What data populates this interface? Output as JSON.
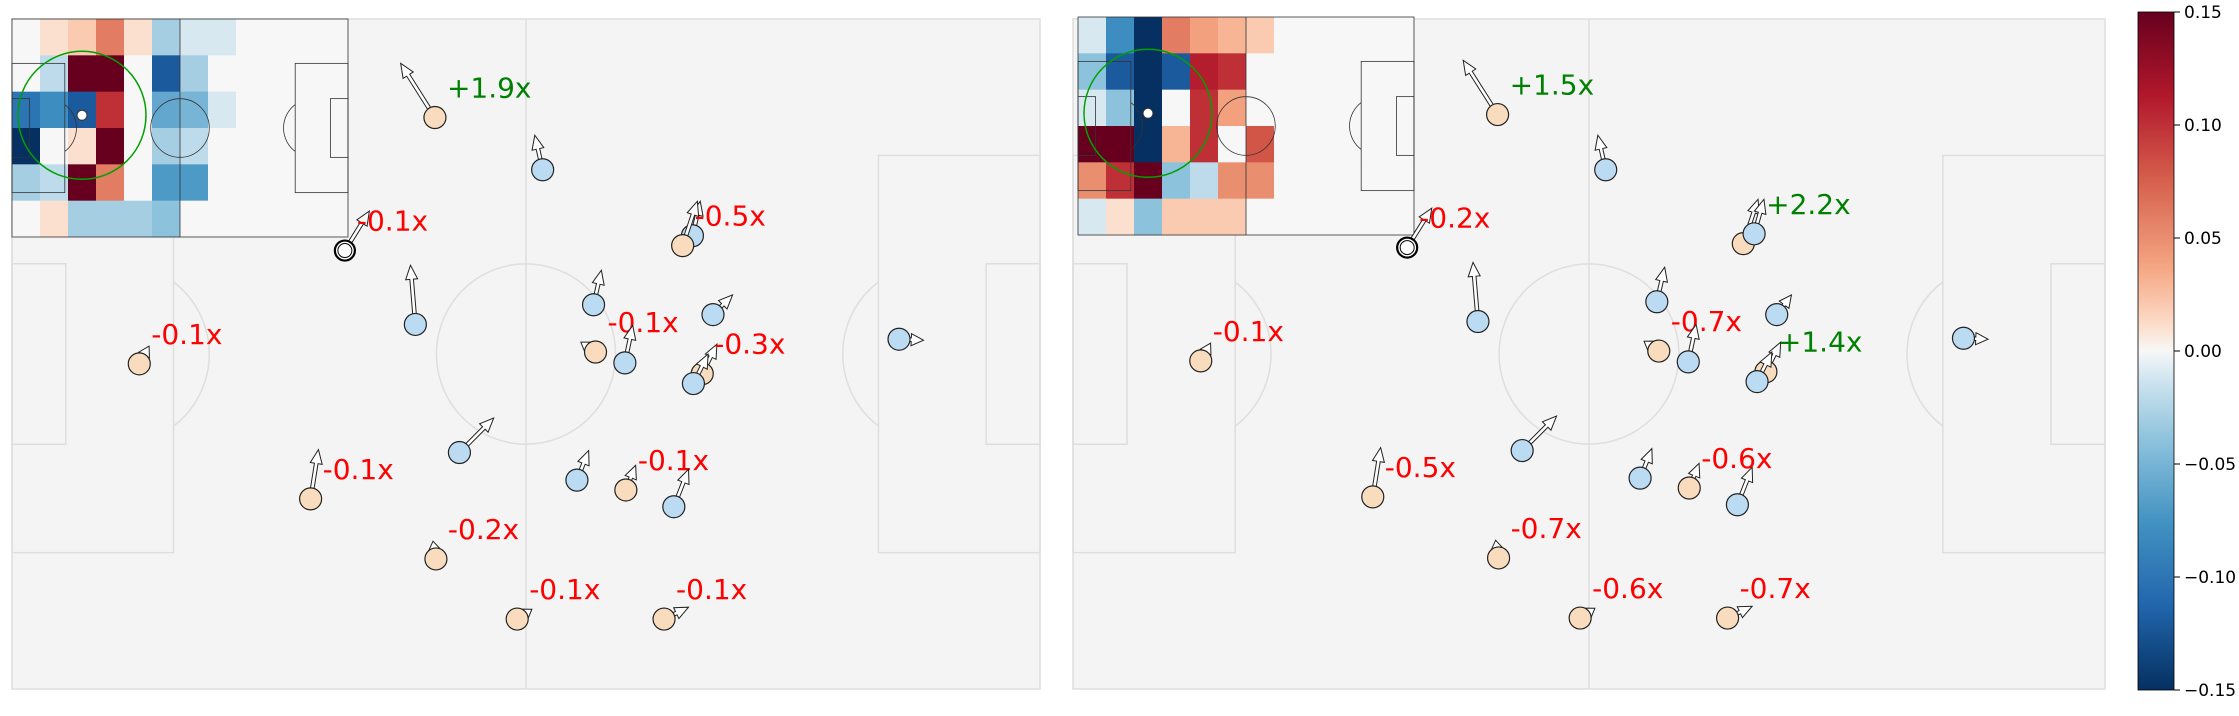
{
  "colors": {
    "pitch": "#f4f4f4",
    "pitch_line": "#dedede",
    "attacker": "#f9dcbd",
    "defender": "#bbdbf2",
    "arrow_fill": "#ffffff",
    "positive_label": "#008000",
    "negative_label": "#ff0000",
    "inset_circle": "#00a000",
    "colormap_name": "RdBu_r"
  },
  "chart_data": [
    {
      "type": "scatter",
      "title": "",
      "xlabel": "",
      "ylabel": "",
      "xlim": [
        0,
        105
      ],
      "ylim": [
        0,
        68
      ],
      "grid": false,
      "players": [
        {
          "team": "attacker",
          "x": 43.2,
          "y": 58.0,
          "dx": -3.5,
          "dy": 5.5,
          "label": "+1.9x"
        },
        {
          "team": "defender",
          "x": 54.2,
          "y": 52.7,
          "dx": -0.8,
          "dy": 3.5,
          "label": ""
        },
        {
          "team": "ball_carrier",
          "x": 34.0,
          "y": 44.5,
          "dx": 2.5,
          "dy": 4.0,
          "label": "-0.1x"
        },
        {
          "team": "defender",
          "x": 69.5,
          "y": 46.0,
          "dx": 0.8,
          "dy": 3.5,
          "label": ""
        },
        {
          "team": "attacker",
          "x": 68.5,
          "y": 45.0,
          "dx": 1.5,
          "dy": 4.5,
          "label": "-0.5x"
        },
        {
          "team": "defender",
          "x": 41.2,
          "y": 37.0,
          "dx": -0.5,
          "dy": 6.0,
          "label": ""
        },
        {
          "team": "defender",
          "x": 59.4,
          "y": 39.0,
          "dx": 0.8,
          "dy": 3.5,
          "label": ""
        },
        {
          "team": "defender",
          "x": 71.6,
          "y": 38.0,
          "dx": 2.0,
          "dy": 2.0,
          "label": ""
        },
        {
          "team": "defender",
          "x": 90.6,
          "y": 35.5,
          "dx": 2.5,
          "dy": -0.1,
          "label": ""
        },
        {
          "team": "attacker",
          "x": 13.0,
          "y": 33.0,
          "dx": 1.0,
          "dy": 1.8,
          "label": "-0.1x"
        },
        {
          "team": "attacker",
          "x": 59.6,
          "y": 34.2,
          "dx": -1.5,
          "dy": 1.0,
          "label": "-0.1x"
        },
        {
          "team": "defender",
          "x": 62.6,
          "y": 33.1,
          "dx": 0.8,
          "dy": 3.8,
          "label": ""
        },
        {
          "team": "attacker",
          "x": 70.5,
          "y": 32.0,
          "dx": 1.5,
          "dy": 3.0,
          "label": "-0.3x"
        },
        {
          "team": "defender",
          "x": 69.6,
          "y": 31.0,
          "dx": 1.5,
          "dy": 3.0,
          "label": ""
        },
        {
          "team": "defender",
          "x": 45.7,
          "y": 24.0,
          "dx": 3.5,
          "dy": 3.5,
          "label": ""
        },
        {
          "team": "attacker",
          "x": 30.5,
          "y": 19.3,
          "dx": 0.8,
          "dy": 5.0,
          "label": "-0.1x"
        },
        {
          "team": "defender",
          "x": 57.7,
          "y": 21.2,
          "dx": 1.2,
          "dy": 3.0,
          "label": ""
        },
        {
          "team": "attacker",
          "x": 62.7,
          "y": 20.2,
          "dx": 1.0,
          "dy": 2.5,
          "label": "-0.1x"
        },
        {
          "team": "defender",
          "x": 67.6,
          "y": 18.5,
          "dx": 1.5,
          "dy": 3.8,
          "label": ""
        },
        {
          "team": "attacker",
          "x": 43.3,
          "y": 13.2,
          "dx": -0.3,
          "dy": 1.8,
          "label": "-0.2x"
        },
        {
          "team": "attacker",
          "x": 51.6,
          "y": 7.1,
          "dx": 1.5,
          "dy": 1.0,
          "label": "-0.1x"
        },
        {
          "team": "attacker",
          "x": 66.6,
          "y": 7.1,
          "dx": 2.5,
          "dy": 1.2,
          "label": "-0.1x"
        }
      ],
      "inset_heatmap": {
        "type": "heatmap",
        "rows": 6,
        "cols": 12,
        "ball_cell": [
          3,
          2
        ],
        "values": [
          [
            0.0,
            0.01,
            0.02,
            0.06,
            0.01,
            -0.03,
            -0.01,
            -0.01,
            0.0,
            0.0,
            0.0,
            0.0
          ],
          [
            0.0,
            -0.02,
            0.15,
            0.15,
            0.0,
            -0.12,
            -0.03,
            0.0,
            0.0,
            0.0,
            0.0,
            0.0
          ],
          [
            -0.1,
            -0.08,
            -0.12,
            0.1,
            0.0,
            -0.06,
            -0.05,
            -0.01,
            0.0,
            0.0,
            0.0,
            0.0
          ],
          [
            -0.15,
            0.0,
            0.01,
            0.15,
            0.0,
            -0.03,
            -0.02,
            0.0,
            0.0,
            0.0,
            0.0,
            0.0
          ],
          [
            -0.03,
            -0.02,
            0.15,
            0.06,
            0.0,
            -0.07,
            -0.07,
            0.0,
            0.0,
            0.0,
            0.0,
            0.0
          ],
          [
            0.0,
            0.01,
            -0.03,
            -0.03,
            -0.03,
            -0.04,
            0.0,
            0.0,
            0.0,
            0.0,
            0.0,
            0.0
          ]
        ]
      }
    },
    {
      "type": "scatter",
      "title": "",
      "xlabel": "",
      "ylabel": "",
      "xlim": [
        0,
        105
      ],
      "ylim": [
        0,
        68
      ],
      "grid": false,
      "players": [
        {
          "team": "attacker",
          "x": 43.2,
          "y": 58.3,
          "dx": -3.5,
          "dy": 5.5,
          "label": "+1.5x"
        },
        {
          "team": "defender",
          "x": 54.2,
          "y": 52.7,
          "dx": -0.8,
          "dy": 3.5,
          "label": ""
        },
        {
          "team": "ball_carrier",
          "x": 34.0,
          "y": 44.8,
          "dx": 2.5,
          "dy": 4.0,
          "label": "-0.2x"
        },
        {
          "team": "attacker",
          "x": 68.2,
          "y": 45.2,
          "dx": 1.5,
          "dy": 4.5,
          "label": ""
        },
        {
          "team": "defender",
          "x": 69.3,
          "y": 46.2,
          "dx": 1.0,
          "dy": 3.5,
          "label": "+2.2x"
        },
        {
          "team": "defender",
          "x": 41.2,
          "y": 37.3,
          "dx": -0.5,
          "dy": 6.0,
          "label": ""
        },
        {
          "team": "defender",
          "x": 59.4,
          "y": 39.3,
          "dx": 0.8,
          "dy": 3.5,
          "label": ""
        },
        {
          "team": "defender",
          "x": 71.6,
          "y": 38.0,
          "dx": 1.5,
          "dy": 2.0,
          "label": ""
        },
        {
          "team": "defender",
          "x": 90.6,
          "y": 35.6,
          "dx": 2.5,
          "dy": -0.1,
          "label": ""
        },
        {
          "team": "attacker",
          "x": 13.0,
          "y": 33.3,
          "dx": 1.0,
          "dy": 1.8,
          "label": "-0.1x"
        },
        {
          "team": "attacker",
          "x": 59.6,
          "y": 34.3,
          "dx": -1.5,
          "dy": 1.0,
          "label": "-0.7x"
        },
        {
          "team": "defender",
          "x": 62.6,
          "y": 33.2,
          "dx": 0.8,
          "dy": 3.8,
          "label": ""
        },
        {
          "team": "attacker",
          "x": 70.5,
          "y": 32.2,
          "dx": 1.5,
          "dy": 3.0,
          "label": "+1.4x"
        },
        {
          "team": "defender",
          "x": 69.6,
          "y": 31.2,
          "dx": 1.5,
          "dy": 3.0,
          "label": ""
        },
        {
          "team": "defender",
          "x": 45.7,
          "y": 24.2,
          "dx": 3.5,
          "dy": 3.5,
          "label": ""
        },
        {
          "team": "attacker",
          "x": 30.5,
          "y": 19.5,
          "dx": 0.8,
          "dy": 5.0,
          "label": "-0.5x"
        },
        {
          "team": "defender",
          "x": 57.7,
          "y": 21.4,
          "dx": 1.2,
          "dy": 3.0,
          "label": ""
        },
        {
          "team": "attacker",
          "x": 62.7,
          "y": 20.4,
          "dx": 1.0,
          "dy": 2.5,
          "label": "-0.6x"
        },
        {
          "team": "defender",
          "x": 67.6,
          "y": 18.7,
          "dx": 1.5,
          "dy": 3.8,
          "label": ""
        },
        {
          "team": "attacker",
          "x": 43.3,
          "y": 13.3,
          "dx": -0.3,
          "dy": 1.8,
          "label": "-0.7x"
        },
        {
          "team": "attacker",
          "x": 51.6,
          "y": 7.2,
          "dx": 1.5,
          "dy": 1.0,
          "label": "-0.6x"
        },
        {
          "team": "attacker",
          "x": 66.6,
          "y": 7.2,
          "dx": 2.5,
          "dy": 1.2,
          "label": "-0.7x"
        }
      ],
      "inset_heatmap": {
        "type": "heatmap",
        "rows": 6,
        "cols": 12,
        "ball_cell": [
          3,
          2
        ],
        "values": [
          [
            -0.01,
            -0.08,
            -0.15,
            0.06,
            0.04,
            0.03,
            0.02,
            0.0,
            0.0,
            0.0,
            0.0,
            0.0
          ],
          [
            -0.04,
            -0.12,
            -0.15,
            -0.12,
            0.11,
            0.1,
            0.0,
            0.0,
            0.0,
            0.0,
            0.0,
            0.0
          ],
          [
            -0.01,
            -0.04,
            -0.15,
            0.0,
            0.1,
            0.04,
            0.0,
            0.0,
            0.0,
            0.0,
            0.0,
            0.0
          ],
          [
            0.15,
            0.15,
            -0.15,
            0.03,
            0.1,
            0.0,
            0.08,
            0.0,
            0.0,
            0.0,
            0.0,
            0.0
          ],
          [
            0.05,
            0.1,
            0.15,
            -0.04,
            -0.02,
            0.05,
            0.05,
            0.0,
            0.0,
            0.0,
            0.0,
            0.0
          ],
          [
            -0.01,
            0.01,
            -0.04,
            0.02,
            0.02,
            0.02,
            0.0,
            0.0,
            0.0,
            0.0,
            0.0,
            0.0
          ]
        ]
      }
    }
  ],
  "colorbar": {
    "min": -0.15,
    "max": 0.15,
    "ticks": [
      "0.15",
      "0.10",
      "0.05",
      "0.00",
      "−0.05",
      "−0.10",
      "−0.15"
    ],
    "tick_values": [
      0.15,
      0.1,
      0.05,
      0.0,
      -0.05,
      -0.1,
      -0.15
    ]
  }
}
